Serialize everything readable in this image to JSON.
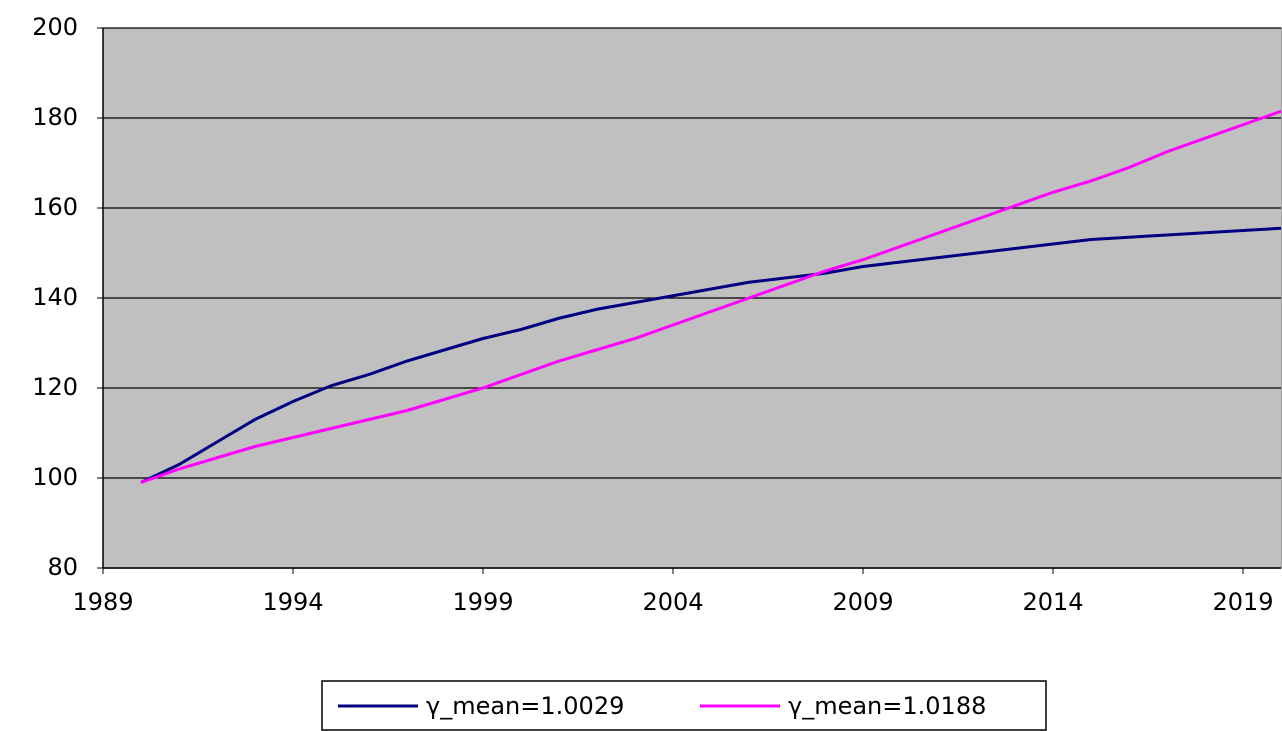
{
  "chart_data": {
    "type": "line",
    "x": [
      1990,
      1991,
      1992,
      1993,
      1994,
      1995,
      1996,
      1997,
      1998,
      1999,
      2000,
      2001,
      2002,
      2003,
      2004,
      2005,
      2006,
      2007,
      2008,
      2009,
      2010,
      2011,
      2012,
      2013,
      2014,
      2015,
      2016,
      2017,
      2018,
      2019,
      2020
    ],
    "series": [
      {
        "name": "γ_mean=1.0029",
        "color": "#000080",
        "values": [
          99,
          103,
          108,
          113,
          117,
          120.5,
          123,
          126,
          128.5,
          131,
          133,
          135.5,
          137.5,
          139,
          140.5,
          142,
          143.5,
          144.5,
          145.5,
          147,
          148,
          149,
          150,
          151,
          152,
          153,
          153.5,
          154,
          154.5,
          155,
          155.5
        ]
      },
      {
        "name": "γ_mean=1.0188",
        "color": "#ff00ff",
        "values": [
          99,
          102,
          104.5,
          107,
          109,
          111,
          113,
          115,
          117.5,
          120,
          123,
          126,
          128.5,
          131,
          134,
          137,
          140,
          143,
          146,
          148.5,
          151.5,
          154.5,
          157.5,
          160.5,
          163.5,
          166,
          169,
          172.5,
          175.5,
          178.5,
          181.5
        ]
      }
    ],
    "xlim": [
      1989,
      2020
    ],
    "xticks": [
      1989,
      1994,
      1999,
      2004,
      2009,
      2014,
      2019
    ],
    "ylim": [
      80,
      200
    ],
    "yticks": [
      80,
      100,
      120,
      140,
      160,
      180,
      200
    ],
    "grid": true,
    "legend": "bottom"
  }
}
